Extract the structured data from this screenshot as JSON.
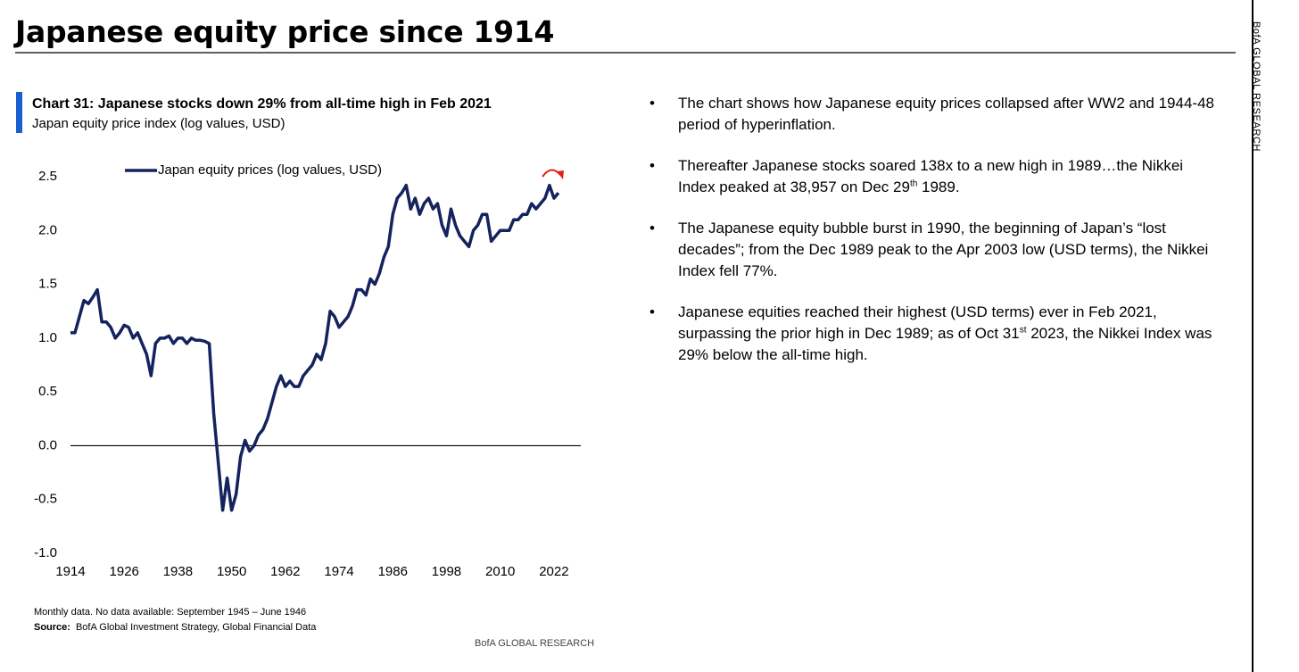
{
  "page": {
    "title": "Japanese equity price since 1914",
    "side_label": "BofA GLOBAL RESEARCH",
    "bullets": [
      [
        {
          "text": "The chart shows how Japanese equity prices collapsed after WW2 and 1944-48 period of hyperinflation."
        }
      ],
      [
        {
          "text": "Thereafter Japanese stocks soared 138x to a new high in 1989…the Nikkei Index peaked at 38,957 on Dec 29"
        },
        {
          "text": "th",
          "sup": true
        },
        {
          "text": " 1989."
        }
      ],
      [
        {
          "text": "The Japanese equity bubble burst in 1990, the beginning of Japan’s “lost decades”; from the Dec 1989 peak to the Apr 2003 low (USD terms), the Nikkei Index fell 77%."
        }
      ],
      [
        {
          "text": "Japanese equities reached their highest (USD terms) ever in Feb 2021, surpassing the prior high in Dec 1989; as of Oct 31"
        },
        {
          "text": "st",
          "sup": true
        },
        {
          "text": " 2023, the Nikkei Index was 29% below the all-time high."
        }
      ]
    ]
  },
  "chart_data": {
    "type": "line",
    "title": "Chart 31: Japanese stocks down 29% from all-time high in Feb 2021",
    "subtitle": "Japan equity price index (log values, USD)",
    "note": "Monthly data. No data available: September 1945 – June 1946",
    "source_label": "Source:",
    "source": "BofA Global Investment Strategy, Global Financial Data",
    "footer": "BofA GLOBAL RESEARCH",
    "x": [
      1914,
      1915,
      1916,
      1917,
      1918,
      1919,
      1920,
      1921,
      1922,
      1923,
      1924,
      1925,
      1926,
      1927,
      1928,
      1929,
      1930,
      1931,
      1932,
      1933,
      1934,
      1935,
      1936,
      1937,
      1938,
      1939,
      1940,
      1941,
      1942,
      1943,
      1944,
      1945,
      1946,
      1947,
      1948,
      1949,
      1950,
      1951,
      1952,
      1953,
      1954,
      1955,
      1956,
      1957,
      1958,
      1959,
      1960,
      1961,
      1962,
      1963,
      1964,
      1965,
      1966,
      1967,
      1968,
      1969,
      1970,
      1971,
      1972,
      1973,
      1974,
      1975,
      1976,
      1977,
      1978,
      1979,
      1980,
      1981,
      1982,
      1983,
      1984,
      1985,
      1986,
      1987,
      1988,
      1989,
      1990,
      1991,
      1992,
      1993,
      1994,
      1995,
      1996,
      1997,
      1998,
      1999,
      2000,
      2001,
      2002,
      2003,
      2004,
      2005,
      2006,
      2007,
      2008,
      2009,
      2010,
      2011,
      2012,
      2013,
      2014,
      2015,
      2016,
      2017,
      2018,
      2019,
      2020,
      2021,
      2022,
      2023
    ],
    "series": [
      {
        "name": "Japan equity prices (log values, USD)",
        "color": "#14235e",
        "values": [
          1.05,
          1.05,
          1.2,
          1.35,
          1.32,
          1.38,
          1.45,
          1.15,
          1.15,
          1.1,
          1.0,
          1.05,
          1.12,
          1.1,
          1.0,
          1.05,
          0.95,
          0.85,
          0.65,
          0.95,
          1.0,
          1.0,
          1.02,
          0.95,
          1.0,
          1.0,
          0.95,
          1.0,
          0.98,
          0.98,
          0.97,
          0.95,
          0.3,
          -0.15,
          -0.6,
          -0.3,
          -0.6,
          -0.45,
          -0.1,
          0.05,
          -0.05,
          0.0,
          0.1,
          0.15,
          0.25,
          0.4,
          0.55,
          0.65,
          0.55,
          0.6,
          0.55,
          0.55,
          0.65,
          0.7,
          0.75,
          0.85,
          0.8,
          0.95,
          1.25,
          1.2,
          1.1,
          1.15,
          1.2,
          1.3,
          1.45,
          1.45,
          1.4,
          1.55,
          1.5,
          1.6,
          1.75,
          1.85,
          2.15,
          2.3,
          2.35,
          2.42,
          2.2,
          2.3,
          2.15,
          2.25,
          2.3,
          2.2,
          2.25,
          2.05,
          1.95,
          2.2,
          2.05,
          1.95,
          1.9,
          1.85,
          2.0,
          2.05,
          2.15,
          2.15,
          1.9,
          1.95,
          2.0,
          2.0,
          2.0,
          2.1,
          2.1,
          2.15,
          2.15,
          2.25,
          2.2,
          2.25,
          2.3,
          2.42,
          2.3,
          2.35
        ]
      }
    ],
    "xlim": [
      1914,
      2028
    ],
    "xticks": [
      1914,
      1926,
      1938,
      1950,
      1962,
      1974,
      1986,
      1998,
      2010,
      2022
    ],
    "ylim": [
      -1,
      2.5
    ],
    "yticks": [
      {
        "value": -1,
        "label": "-1.0"
      },
      -0.5,
      {
        "value": 0,
        "label": "0.0"
      },
      0.5,
      {
        "value": 1,
        "label": "1.0"
      },
      1.5,
      {
        "value": 2,
        "label": "2.0"
      },
      2.5
    ],
    "grid": false,
    "legend": "top"
  }
}
